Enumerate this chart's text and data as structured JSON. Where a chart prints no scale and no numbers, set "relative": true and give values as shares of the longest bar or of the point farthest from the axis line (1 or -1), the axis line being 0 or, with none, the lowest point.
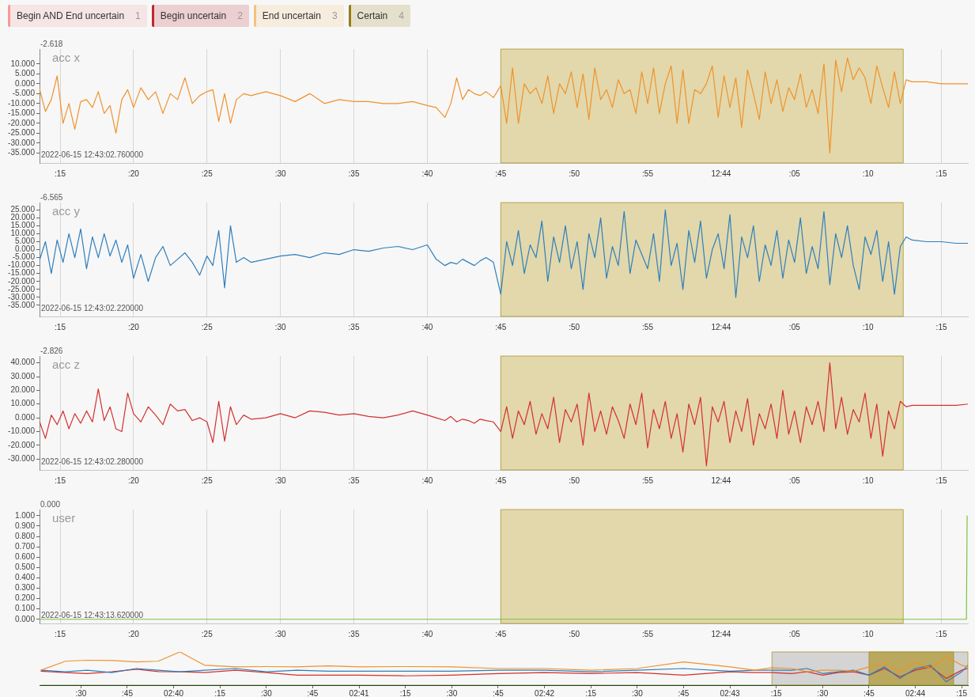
{
  "chart_data": [
    {
      "type": "other",
      "annotations": [
        "Begin AND End uncertain",
        "1",
        "Begin uncertain",
        "2",
        "End uncertain",
        "3",
        "Certain",
        "4"
      ],
      "colors": [
        "#f49a9a",
        "#c0272d",
        "#f7c27c",
        "#9a7d12"
      ]
    },
    {
      "type": "line",
      "title": "acc x",
      "annotations": [
        "-2.618",
        "2022-06-15 12:43:02.760000"
      ],
      "x": [
        "2022-06-15T12:43:13.6",
        "2022-06-15T12:43:14.0",
        "2022-06-15T12:43:14.4",
        "2022-06-15T12:43:14.8",
        "2022-06-15T12:43:15.2",
        "2022-06-15T12:43:15.6",
        "2022-06-15T12:43:16.0",
        "2022-06-15T12:43:16.4",
        "2022-06-15T12:43:16.8",
        "2022-06-15T12:43:17.2",
        "2022-06-15T12:43:17.6",
        "2022-06-15T12:43:18.0",
        "2022-06-15T12:43:18.4",
        "2022-06-15T12:43:18.8",
        "2022-06-15T12:43:19.2",
        "2022-06-15T12:43:19.6",
        "2022-06-15T12:43:20.0",
        "2022-06-15T12:43:20.5",
        "2022-06-15T12:43:21.0",
        "2022-06-15T12:43:21.5",
        "2022-06-15T12:43:22.0",
        "2022-06-15T12:43:22.5",
        "2022-06-15T12:43:23.0",
        "2022-06-15T12:43:23.5",
        "2022-06-15T12:43:24.0",
        "2022-06-15T12:43:24.5",
        "2022-06-15T12:43:25.0",
        "2022-06-15T12:43:25.4",
        "2022-06-15T12:43:25.8",
        "2022-06-15T12:43:26.2",
        "2022-06-15T12:43:26.6",
        "2022-06-15T12:43:27.0",
        "2022-06-15T12:43:27.5",
        "2022-06-15T12:43:28.0",
        "2022-06-15T12:43:29.0",
        "2022-06-15T12:43:30.0",
        "2022-06-15T12:43:31.0",
        "2022-06-15T12:43:32.0",
        "2022-06-15T12:43:33.0",
        "2022-06-15T12:43:34.0",
        "2022-06-15T12:43:35.0",
        "2022-06-15T12:43:36.0",
        "2022-06-15T12:43:37.0",
        "2022-06-15T12:43:38.0",
        "2022-06-15T12:43:39.0",
        "2022-06-15T12:43:40.0",
        "2022-06-15T12:43:40.6",
        "2022-06-15T12:43:41.2",
        "2022-06-15T12:43:41.6",
        "2022-06-15T12:43:42.0",
        "2022-06-15T12:43:42.4",
        "2022-06-15T12:43:42.8",
        "2022-06-15T12:43:43.2",
        "2022-06-15T12:43:43.6",
        "2022-06-15T12:43:44.0",
        "2022-06-15T12:43:44.5",
        "2022-06-15T12:43:45.0",
        "2022-06-15T12:43:45.4",
        "2022-06-15T12:43:45.8",
        "2022-06-15T12:43:46.2",
        "2022-06-15T12:43:46.6",
        "2022-06-15T12:43:47.0",
        "2022-06-15T12:43:47.4",
        "2022-06-15T12:43:47.8",
        "2022-06-15T12:43:48.2",
        "2022-06-15T12:43:48.6",
        "2022-06-15T12:43:49.0",
        "2022-06-15T12:43:49.4",
        "2022-06-15T12:43:49.8",
        "2022-06-15T12:43:50.2",
        "2022-06-15T12:43:50.6",
        "2022-06-15T12:43:51.0",
        "2022-06-15T12:43:51.4",
        "2022-06-15T12:43:51.8",
        "2022-06-15T12:43:52.2",
        "2022-06-15T12:43:52.6",
        "2022-06-15T12:43:53.0",
        "2022-06-15T12:43:53.4",
        "2022-06-15T12:43:53.8",
        "2022-06-15T12:43:54.2",
        "2022-06-15T12:43:54.6",
        "2022-06-15T12:43:55.0",
        "2022-06-15T12:43:55.4",
        "2022-06-15T12:43:55.8",
        "2022-06-15T12:43:56.2",
        "2022-06-15T12:43:56.6",
        "2022-06-15T12:43:57.0",
        "2022-06-15T12:43:57.4",
        "2022-06-15T12:43:57.8",
        "2022-06-15T12:43:58.2",
        "2022-06-15T12:43:58.6",
        "2022-06-15T12:43:59.0",
        "2022-06-15T12:43:59.4",
        "2022-06-15T12:43:59.8",
        "2022-06-15T12:44:00.2",
        "2022-06-15T12:44:00.6",
        "2022-06-15T12:44:01.0",
        "2022-06-15T12:44:01.4",
        "2022-06-15T12:44:01.8",
        "2022-06-15T12:44:02.2",
        "2022-06-15T12:44:02.6",
        "2022-06-15T12:44:03.0",
        "2022-06-15T12:44:03.4",
        "2022-06-15T12:44:03.8",
        "2022-06-15T12:44:04.2",
        "2022-06-15T12:44:04.6",
        "2022-06-15T12:44:05.0",
        "2022-06-15T12:44:05.4",
        "2022-06-15T12:44:05.8",
        "2022-06-15T12:44:06.2",
        "2022-06-15T12:44:06.6",
        "2022-06-15T12:44:07.0",
        "2022-06-15T12:44:07.4",
        "2022-06-15T12:44:07.8",
        "2022-06-15T12:44:08.2",
        "2022-06-15T12:44:08.6",
        "2022-06-15T12:44:09.0",
        "2022-06-15T12:44:09.4",
        "2022-06-15T12:44:09.8",
        "2022-06-15T12:44:10.2",
        "2022-06-15T12:44:10.6",
        "2022-06-15T12:44:11.0",
        "2022-06-15T12:44:11.4",
        "2022-06-15T12:44:11.8",
        "2022-06-15T12:44:12.2",
        "2022-06-15T12:44:12.6",
        "2022-06-15T12:44:13.0",
        "2022-06-15T12:44:14.0",
        "2022-06-15T12:44:15.0",
        "2022-06-15T12:44:16.0",
        "2022-06-15T12:44:16.8"
      ],
      "series": [
        {
          "color": "#f0922b",
          "values": [
            -2.6,
            -14,
            -8,
            4,
            -20,
            -10,
            -23,
            -9,
            -8,
            -12,
            -4,
            -15,
            -11,
            -25,
            -8,
            -3,
            -12,
            -2,
            -8,
            -4,
            -15,
            -5,
            -8,
            3,
            -10,
            -6,
            -4,
            -3,
            -19,
            -5,
            -20,
            -8,
            -5,
            -6,
            -4,
            -6,
            -9,
            -5,
            -10,
            -8,
            -9,
            -9,
            -10,
            -10,
            -9,
            -11,
            -12,
            -17,
            -10,
            3,
            -8,
            -3,
            -5,
            -6,
            -4,
            -7,
            -1,
            -20,
            8,
            -20,
            0,
            -5,
            -2,
            -10,
            4,
            -15,
            0,
            -5,
            6,
            -12,
            5,
            -18,
            8,
            -8,
            -3,
            -12,
            2,
            -5,
            -3,
            -15,
            6,
            -10,
            8,
            -15,
            0,
            9,
            -20,
            7,
            -20,
            -3,
            -5,
            0,
            9,
            -17,
            4,
            -12,
            3,
            -22,
            7,
            -5,
            -18,
            6,
            -10,
            2,
            -14,
            -2,
            -8,
            5,
            -12,
            -3,
            -15,
            10,
            -35,
            12,
            -4,
            13,
            2,
            8,
            3,
            -10,
            9,
            -2,
            -12,
            6,
            -10,
            2,
            1,
            1,
            0,
            0,
            0
          ]
        }
      ],
      "xlim": [
        "2022-06-15T12:43:13.6",
        "2022-06-15T12:44:16.8"
      ],
      "xticks": [
        {
          "value": "2022-06-15T12:43:15",
          "label": ":15"
        },
        {
          "value": "2022-06-15T12:43:20",
          "label": ":20"
        },
        {
          "value": "2022-06-15T12:43:25",
          "label": ":25"
        },
        {
          "value": "2022-06-15T12:43:30",
          "label": ":30"
        },
        {
          "value": "2022-06-15T12:43:35",
          "label": ":35"
        },
        {
          "value": "2022-06-15T12:43:40",
          "label": ":40"
        },
        {
          "value": "2022-06-15T12:43:45",
          "label": ":45"
        },
        {
          "value": "2022-06-15T12:43:50",
          "label": ":50"
        },
        {
          "value": "2022-06-15T12:43:55",
          "label": ":55"
        },
        {
          "value": "2022-06-15T12:44:00",
          "label": "12:44"
        },
        {
          "value": "2022-06-15T12:44:05",
          "label": ":05"
        },
        {
          "value": "2022-06-15T12:44:10",
          "label": ":10"
        },
        {
          "value": "2022-06-15T12:44:15",
          "label": ":15"
        }
      ],
      "ylim": [
        -40,
        17.5
      ],
      "yticks": [
        {
          "value": -35,
          "label": "-35.000"
        },
        {
          "value": -30,
          "label": "-30.000"
        },
        {
          "value": -25,
          "label": "-25.000"
        },
        {
          "value": -20,
          "label": "-20.000"
        },
        {
          "value": -15,
          "label": "-15.000"
        },
        {
          "value": -10,
          "label": "-10.000"
        },
        {
          "value": -5,
          "label": "-5.000"
        },
        {
          "value": 0,
          "label": "0.000"
        },
        {
          "value": 5,
          "label": "5.000"
        },
        {
          "value": 10,
          "label": "10.000"
        }
      ],
      "bands": [
        {
          "axis": "x",
          "from": "2022-06-15T12:43:45",
          "to": "2022-06-15T12:44:12.4",
          "color": "#e2d8ab"
        }
      ],
      "grid": "x"
    },
    {
      "type": "line",
      "title": "acc y",
      "annotations": [
        "-6.565",
        "2022-06-15 12:43:02.220000"
      ],
      "x": [
        "2022-06-15T12:43:13.6",
        "2022-06-15T12:43:14.0",
        "2022-06-15T12:43:14.4",
        "2022-06-15T12:43:14.8",
        "2022-06-15T12:43:15.2",
        "2022-06-15T12:43:15.6",
        "2022-06-15T12:43:16.0",
        "2022-06-15T12:43:16.4",
        "2022-06-15T12:43:16.8",
        "2022-06-15T12:43:17.2",
        "2022-06-15T12:43:17.6",
        "2022-06-15T12:43:18.0",
        "2022-06-15T12:43:18.4",
        "2022-06-15T12:43:18.8",
        "2022-06-15T12:43:19.2",
        "2022-06-15T12:43:19.6",
        "2022-06-15T12:43:20.0",
        "2022-06-15T12:43:20.5",
        "2022-06-15T12:43:21.0",
        "2022-06-15T12:43:21.5",
        "2022-06-15T12:43:22.0",
        "2022-06-15T12:43:22.5",
        "2022-06-15T12:43:23.0",
        "2022-06-15T12:43:23.5",
        "2022-06-15T12:43:24.0",
        "2022-06-15T12:43:24.5",
        "2022-06-15T12:43:25.0",
        "2022-06-15T12:43:25.4",
        "2022-06-15T12:43:25.8",
        "2022-06-15T12:43:26.2",
        "2022-06-15T12:43:26.6",
        "2022-06-15T12:43:27.0",
        "2022-06-15T12:43:27.5",
        "2022-06-15T12:43:28.0",
        "2022-06-15T12:43:29.0",
        "2022-06-15T12:43:30.0",
        "2022-06-15T12:43:31.0",
        "2022-06-15T12:43:32.0",
        "2022-06-15T12:43:33.0",
        "2022-06-15T12:43:34.0",
        "2022-06-15T12:43:35.0",
        "2022-06-15T12:43:36.0",
        "2022-06-15T12:43:37.0",
        "2022-06-15T12:43:38.0",
        "2022-06-15T12:43:39.0",
        "2022-06-15T12:43:40.0",
        "2022-06-15T12:43:40.6",
        "2022-06-15T12:43:41.2",
        "2022-06-15T12:43:41.6",
        "2022-06-15T12:43:42.0",
        "2022-06-15T12:43:42.4",
        "2022-06-15T12:43:42.8",
        "2022-06-15T12:43:43.2",
        "2022-06-15T12:43:43.6",
        "2022-06-15T12:43:44.0",
        "2022-06-15T12:43:44.5",
        "2022-06-15T12:43:45.0",
        "2022-06-15T12:43:45.4",
        "2022-06-15T12:43:45.8",
        "2022-06-15T12:43:46.2",
        "2022-06-15T12:43:46.6",
        "2022-06-15T12:43:47.0",
        "2022-06-15T12:43:47.4",
        "2022-06-15T12:43:47.8",
        "2022-06-15T12:43:48.2",
        "2022-06-15T12:43:48.6",
        "2022-06-15T12:43:49.0",
        "2022-06-15T12:43:49.4",
        "2022-06-15T12:43:49.8",
        "2022-06-15T12:43:50.2",
        "2022-06-15T12:43:50.6",
        "2022-06-15T12:43:51.0",
        "2022-06-15T12:43:51.4",
        "2022-06-15T12:43:51.8",
        "2022-06-15T12:43:52.2",
        "2022-06-15T12:43:52.6",
        "2022-06-15T12:43:53.0",
        "2022-06-15T12:43:53.4",
        "2022-06-15T12:43:53.8",
        "2022-06-15T12:43:54.2",
        "2022-06-15T12:43:54.6",
        "2022-06-15T12:43:55.0",
        "2022-06-15T12:43:55.4",
        "2022-06-15T12:43:55.8",
        "2022-06-15T12:43:56.2",
        "2022-06-15T12:43:56.6",
        "2022-06-15T12:43:57.0",
        "2022-06-15T12:43:57.4",
        "2022-06-15T12:43:57.8",
        "2022-06-15T12:43:58.2",
        "2022-06-15T12:43:58.6",
        "2022-06-15T12:43:59.0",
        "2022-06-15T12:43:59.4",
        "2022-06-15T12:43:59.8",
        "2022-06-15T12:44:00.2",
        "2022-06-15T12:44:00.6",
        "2022-06-15T12:44:01.0",
        "2022-06-15T12:44:01.4",
        "2022-06-15T12:44:01.8",
        "2022-06-15T12:44:02.2",
        "2022-06-15T12:44:02.6",
        "2022-06-15T12:44:03.0",
        "2022-06-15T12:44:03.4",
        "2022-06-15T12:44:03.8",
        "2022-06-15T12:44:04.2",
        "2022-06-15T12:44:04.6",
        "2022-06-15T12:44:05.0",
        "2022-06-15T12:44:05.4",
        "2022-06-15T12:44:05.8",
        "2022-06-15T12:44:06.2",
        "2022-06-15T12:44:06.6",
        "2022-06-15T12:44:07.0",
        "2022-06-15T12:44:07.4",
        "2022-06-15T12:44:07.8",
        "2022-06-15T12:44:08.2",
        "2022-06-15T12:44:08.6",
        "2022-06-15T12:44:09.0",
        "2022-06-15T12:44:09.4",
        "2022-06-15T12:44:09.8",
        "2022-06-15T12:44:10.2",
        "2022-06-15T12:44:10.6",
        "2022-06-15T12:44:11.0",
        "2022-06-15T12:44:11.4",
        "2022-06-15T12:44:11.8",
        "2022-06-15T12:44:12.2",
        "2022-06-15T12:44:12.6",
        "2022-06-15T12:44:13.0",
        "2022-06-15T12:44:14.0",
        "2022-06-15T12:44:15.0",
        "2022-06-15T12:44:16.0",
        "2022-06-15T12:44:16.8"
      ],
      "series": [
        {
          "color": "#2e7fbd",
          "values": [
            -6.6,
            5,
            -15,
            6,
            -8,
            10,
            -5,
            13,
            -12,
            8,
            -5,
            10,
            -4,
            6,
            -8,
            3,
            -18,
            -3,
            -20,
            -5,
            2,
            -10,
            -6,
            -2,
            -8,
            -16,
            -4,
            -10,
            12,
            -24,
            15,
            -8,
            -5,
            -8,
            -6,
            -4,
            -3,
            -5,
            -2,
            -3,
            0,
            -1,
            1,
            2,
            0,
            3,
            -6,
            -10,
            -8,
            -9,
            -6,
            -8,
            -10,
            -7,
            -5,
            -8,
            -28,
            5,
            -10,
            12,
            -15,
            3,
            -5,
            18,
            -20,
            8,
            -8,
            15,
            -12,
            5,
            -25,
            10,
            -5,
            20,
            -18,
            2,
            -10,
            24,
            -15,
            6,
            -3,
            -12,
            10,
            -20,
            25,
            -10,
            4,
            -25,
            12,
            -8,
            18,
            -18,
            0,
            10,
            -12,
            22,
            -30,
            8,
            -5,
            15,
            -20,
            3,
            -10,
            12,
            -18,
            6,
            -8,
            20,
            -15,
            2,
            -12,
            24,
            -22,
            10,
            -5,
            15,
            -10,
            -25,
            8,
            -3,
            12,
            -20,
            5,
            -28,
            2,
            8,
            6,
            5,
            5,
            4,
            4
          ]
        }
      ],
      "xlim": [
        "2022-06-15T12:43:13.6",
        "2022-06-15T12:44:16.8"
      ],
      "xticks": [
        {
          "value": "2022-06-15T12:43:15",
          "label": ":15"
        },
        {
          "value": "2022-06-15T12:43:20",
          "label": ":20"
        },
        {
          "value": "2022-06-15T12:43:25",
          "label": ":25"
        },
        {
          "value": "2022-06-15T12:43:30",
          "label": ":30"
        },
        {
          "value": "2022-06-15T12:43:35",
          "label": ":35"
        },
        {
          "value": "2022-06-15T12:43:40",
          "label": ":40"
        },
        {
          "value": "2022-06-15T12:43:45",
          "label": ":45"
        },
        {
          "value": "2022-06-15T12:43:50",
          "label": ":50"
        },
        {
          "value": "2022-06-15T12:43:55",
          "label": ":55"
        },
        {
          "value": "2022-06-15T12:44:00",
          "label": "12:44"
        },
        {
          "value": "2022-06-15T12:44:05",
          "label": ":05"
        },
        {
          "value": "2022-06-15T12:44:10",
          "label": ":10"
        },
        {
          "value": "2022-06-15T12:44:15",
          "label": ":15"
        }
      ],
      "ylim": [
        -42,
        29.6
      ],
      "yticks": [
        {
          "value": -35,
          "label": "-35.000"
        },
        {
          "value": -30,
          "label": "-30.000"
        },
        {
          "value": -25,
          "label": "-25.000"
        },
        {
          "value": -20,
          "label": "-20.000"
        },
        {
          "value": -15,
          "label": "-15.000"
        },
        {
          "value": -10,
          "label": "-10.000"
        },
        {
          "value": -5,
          "label": "-5.000"
        },
        {
          "value": 0,
          "label": "0.000"
        },
        {
          "value": 5,
          "label": "5.000"
        },
        {
          "value": 10,
          "label": "10.000"
        },
        {
          "value": 15,
          "label": "15.000"
        },
        {
          "value": 20,
          "label": "20.000"
        },
        {
          "value": 25,
          "label": "25.000"
        }
      ],
      "bands": [
        {
          "axis": "x",
          "from": "2022-06-15T12:43:45",
          "to": "2022-06-15T12:44:12.4",
          "color": "#e2d8ab"
        }
      ],
      "grid": "x"
    },
    {
      "type": "line",
      "title": "acc z",
      "annotations": [
        "-2.826",
        "2022-06-15 12:43:02.280000"
      ],
      "x": [
        "2022-06-15T12:43:13.6",
        "2022-06-15T12:43:14.0",
        "2022-06-15T12:43:14.4",
        "2022-06-15T12:43:14.8",
        "2022-06-15T12:43:15.2",
        "2022-06-15T12:43:15.6",
        "2022-06-15T12:43:16.0",
        "2022-06-15T12:43:16.4",
        "2022-06-15T12:43:16.8",
        "2022-06-15T12:43:17.2",
        "2022-06-15T12:43:17.6",
        "2022-06-15T12:43:18.0",
        "2022-06-15T12:43:18.4",
        "2022-06-15T12:43:18.8",
        "2022-06-15T12:43:19.2",
        "2022-06-15T12:43:19.6",
        "2022-06-15T12:43:20.0",
        "2022-06-15T12:43:20.5",
        "2022-06-15T12:43:21.0",
        "2022-06-15T12:43:21.5",
        "2022-06-15T12:43:22.0",
        "2022-06-15T12:43:22.5",
        "2022-06-15T12:43:23.0",
        "2022-06-15T12:43:23.5",
        "2022-06-15T12:43:24.0",
        "2022-06-15T12:43:24.5",
        "2022-06-15T12:43:25.0",
        "2022-06-15T12:43:25.4",
        "2022-06-15T12:43:25.8",
        "2022-06-15T12:43:26.2",
        "2022-06-15T12:43:26.6",
        "2022-06-15T12:43:27.0",
        "2022-06-15T12:43:27.5",
        "2022-06-15T12:43:28.0",
        "2022-06-15T12:43:29.0",
        "2022-06-15T12:43:30.0",
        "2022-06-15T12:43:31.0",
        "2022-06-15T12:43:32.0",
        "2022-06-15T12:43:33.0",
        "2022-06-15T12:43:34.0",
        "2022-06-15T12:43:35.0",
        "2022-06-15T12:43:36.0",
        "2022-06-15T12:43:37.0",
        "2022-06-15T12:43:38.0",
        "2022-06-15T12:43:39.0",
        "2022-06-15T12:43:40.0",
        "2022-06-15T12:43:40.6",
        "2022-06-15T12:43:41.2",
        "2022-06-15T12:43:41.6",
        "2022-06-15T12:43:42.0",
        "2022-06-15T12:43:42.4",
        "2022-06-15T12:43:42.8",
        "2022-06-15T12:43:43.2",
        "2022-06-15T12:43:43.6",
        "2022-06-15T12:43:44.0",
        "2022-06-15T12:43:44.5",
        "2022-06-15T12:43:45.0",
        "2022-06-15T12:43:45.4",
        "2022-06-15T12:43:45.8",
        "2022-06-15T12:43:46.2",
        "2022-06-15T12:43:46.6",
        "2022-06-15T12:43:47.0",
        "2022-06-15T12:43:47.4",
        "2022-06-15T12:43:47.8",
        "2022-06-15T12:43:48.2",
        "2022-06-15T12:43:48.6",
        "2022-06-15T12:43:49.0",
        "2022-06-15T12:43:49.4",
        "2022-06-15T12:43:49.8",
        "2022-06-15T12:43:50.2",
        "2022-06-15T12:43:50.6",
        "2022-06-15T12:43:51.0",
        "2022-06-15T12:43:51.4",
        "2022-06-15T12:43:51.8",
        "2022-06-15T12:43:52.2",
        "2022-06-15T12:43:52.6",
        "2022-06-15T12:43:53.0",
        "2022-06-15T12:43:53.4",
        "2022-06-15T12:43:53.8",
        "2022-06-15T12:43:54.2",
        "2022-06-15T12:43:54.6",
        "2022-06-15T12:43:55.0",
        "2022-06-15T12:43:55.4",
        "2022-06-15T12:43:55.8",
        "2022-06-15T12:43:56.2",
        "2022-06-15T12:43:56.6",
        "2022-06-15T12:43:57.0",
        "2022-06-15T12:43:57.4",
        "2022-06-15T12:43:57.8",
        "2022-06-15T12:43:58.2",
        "2022-06-15T12:43:58.6",
        "2022-06-15T12:43:59.0",
        "2022-06-15T12:43:59.4",
        "2022-06-15T12:43:59.8",
        "2022-06-15T12:44:00.2",
        "2022-06-15T12:44:00.6",
        "2022-06-15T12:44:01.0",
        "2022-06-15T12:44:01.4",
        "2022-06-15T12:44:01.8",
        "2022-06-15T12:44:02.2",
        "2022-06-15T12:44:02.6",
        "2022-06-15T12:44:03.0",
        "2022-06-15T12:44:03.4",
        "2022-06-15T12:44:03.8",
        "2022-06-15T12:44:04.2",
        "2022-06-15T12:44:04.6",
        "2022-06-15T12:44:05.0",
        "2022-06-15T12:44:05.4",
        "2022-06-15T12:44:05.8",
        "2022-06-15T12:44:06.2",
        "2022-06-15T12:44:06.6",
        "2022-06-15T12:44:07.0",
        "2022-06-15T12:44:07.4",
        "2022-06-15T12:44:07.8",
        "2022-06-15T12:44:08.2",
        "2022-06-15T12:44:08.6",
        "2022-06-15T12:44:09.0",
        "2022-06-15T12:44:09.4",
        "2022-06-15T12:44:09.8",
        "2022-06-15T12:44:10.2",
        "2022-06-15T12:44:10.6",
        "2022-06-15T12:44:11.0",
        "2022-06-15T12:44:11.4",
        "2022-06-15T12:44:11.8",
        "2022-06-15T12:44:12.2",
        "2022-06-15T12:44:12.6",
        "2022-06-15T12:44:13.0",
        "2022-06-15T12:44:14.0",
        "2022-06-15T12:44:15.0",
        "2022-06-15T12:44:16.0",
        "2022-06-15T12:44:16.8"
      ],
      "series": [
        {
          "color": "#d62f2f",
          "values": [
            -2.8,
            -15,
            2,
            -5,
            5,
            -8,
            3,
            -4,
            5,
            -3,
            21,
            -2,
            8,
            -8,
            -10,
            18,
            3,
            -3,
            8,
            2,
            -5,
            10,
            5,
            6,
            -2,
            0,
            -3,
            -18,
            12,
            -17,
            8,
            -5,
            2,
            -1,
            0,
            3,
            0,
            5,
            4,
            2,
            3,
            1,
            0,
            2,
            5,
            2,
            0,
            -2,
            1,
            -3,
            -1,
            -2,
            -4,
            -1,
            -2,
            -3,
            -10,
            8,
            -15,
            5,
            -5,
            12,
            -12,
            3,
            -8,
            15,
            -18,
            6,
            -3,
            10,
            -20,
            18,
            -10,
            5,
            -12,
            8,
            -2,
            -15,
            10,
            -5,
            18,
            -22,
            6,
            -8,
            12,
            -15,
            3,
            -25,
            10,
            -5,
            15,
            -35,
            8,
            -3,
            12,
            -18,
            5,
            -10,
            14,
            -20,
            3,
            -8,
            10,
            -15,
            20,
            -12,
            5,
            -18,
            8,
            -5,
            12,
            -10,
            40,
            -8,
            15,
            -12,
            6,
            -3,
            18,
            -15,
            10,
            -28,
            5,
            -8,
            12,
            8,
            9,
            9,
            9,
            9,
            10
          ]
        }
      ],
      "xlim": [
        "2022-06-15T12:43:13.6",
        "2022-06-15T12:44:16.8"
      ],
      "xticks": [
        {
          "value": "2022-06-15T12:43:15",
          "label": ":15"
        },
        {
          "value": "2022-06-15T12:43:20",
          "label": ":20"
        },
        {
          "value": "2022-06-15T12:43:25",
          "label": ":25"
        },
        {
          "value": "2022-06-15T12:43:30",
          "label": ":30"
        },
        {
          "value": "2022-06-15T12:43:35",
          "label": ":35"
        },
        {
          "value": "2022-06-15T12:43:40",
          "label": ":40"
        },
        {
          "value": "2022-06-15T12:43:45",
          "label": ":45"
        },
        {
          "value": "2022-06-15T12:43:50",
          "label": ":50"
        },
        {
          "value": "2022-06-15T12:43:55",
          "label": ":55"
        },
        {
          "value": "2022-06-15T12:44:00",
          "label": "12:44"
        },
        {
          "value": "2022-06-15T12:44:05",
          "label": ":05"
        },
        {
          "value": "2022-06-15T12:44:10",
          "label": ":10"
        },
        {
          "value": "2022-06-15T12:44:15",
          "label": ":15"
        }
      ],
      "ylim": [
        -38,
        45
      ],
      "yticks": [
        {
          "value": -30,
          "label": "-30.000"
        },
        {
          "value": -20,
          "label": "-20.000"
        },
        {
          "value": -10,
          "label": "-10.000"
        },
        {
          "value": 0,
          "label": "0.000"
        },
        {
          "value": 10,
          "label": "10.000"
        },
        {
          "value": 20,
          "label": "20.000"
        },
        {
          "value": 30,
          "label": "30.000"
        },
        {
          "value": 40,
          "label": "40.000"
        }
      ],
      "bands": [
        {
          "axis": "x",
          "from": "2022-06-15T12:43:45",
          "to": "2022-06-15T12:44:12.4",
          "color": "#e2d8ab"
        }
      ],
      "grid": "x"
    },
    {
      "type": "line",
      "title": "user",
      "annotations": [
        "0.000",
        "2022-06-15 12:43:13.620000"
      ],
      "x": [
        "2022-06-15T12:43:13.6",
        "2022-06-15T12:44:16.7",
        "2022-06-15T12:44:16.75"
      ],
      "series": [
        {
          "color": "#7cc043",
          "values": [
            0,
            0,
            1
          ]
        }
      ],
      "xlim": [
        "2022-06-15T12:43:13.6",
        "2022-06-15T12:44:16.8"
      ],
      "xticks": [
        {
          "value": "2022-06-15T12:43:15",
          "label": ":15"
        },
        {
          "value": "2022-06-15T12:43:20",
          "label": ":20"
        },
        {
          "value": "2022-06-15T12:43:25",
          "label": ":25"
        },
        {
          "value": "2022-06-15T12:43:30",
          "label": ":30"
        },
        {
          "value": "2022-06-15T12:43:35",
          "label": ":35"
        },
        {
          "value": "2022-06-15T12:43:40",
          "label": ":40"
        },
        {
          "value": "2022-06-15T12:43:45",
          "label": ":45"
        },
        {
          "value": "2022-06-15T12:43:50",
          "label": ":50"
        },
        {
          "value": "2022-06-15T12:43:55",
          "label": ":55"
        },
        {
          "value": "2022-06-15T12:44:00",
          "label": "12:44"
        },
        {
          "value": "2022-06-15T12:44:05",
          "label": ":05"
        },
        {
          "value": "2022-06-15T12:44:10",
          "label": ":10"
        },
        {
          "value": "2022-06-15T12:44:15",
          "label": ":15"
        }
      ],
      "ylim": [
        -0.04,
        1.06
      ],
      "yticks": [
        {
          "value": 0,
          "label": "0.000"
        },
        {
          "value": 0.1,
          "label": "0.100"
        },
        {
          "value": 0.2,
          "label": "0.200"
        },
        {
          "value": 0.3,
          "label": "0.300"
        },
        {
          "value": 0.4,
          "label": "0.400"
        },
        {
          "value": 0.5,
          "label": "0.500"
        },
        {
          "value": 0.6,
          "label": "0.600"
        },
        {
          "value": 0.7,
          "label": "0.700"
        },
        {
          "value": 0.8,
          "label": "0.800"
        },
        {
          "value": 0.9,
          "label": "0.900"
        },
        {
          "value": 1,
          "label": "1.000"
        }
      ],
      "bands": [
        {
          "axis": "x",
          "from": "2022-06-15T12:43:45",
          "to": "2022-06-15T12:44:12.4",
          "color": "#e2d8ab"
        }
      ],
      "grid": "x"
    },
    {
      "type": "line",
      "relative": true,
      "x": [
        "2022-06-15T02:39:17",
        "2022-06-15T02:39:25",
        "2022-06-15T02:39:32",
        "2022-06-15T02:39:40",
        "2022-06-15T02:39:48",
        "2022-06-15T02:39:55",
        "2022-06-15T02:40:02",
        "2022-06-15T02:40:10",
        "2022-06-15T02:40:20",
        "2022-06-15T02:40:30",
        "2022-06-15T02:40:40",
        "2022-06-15T02:40:50",
        "2022-06-15T02:41:00",
        "2022-06-15T02:41:15",
        "2022-06-15T02:41:30",
        "2022-06-15T02:41:45",
        "2022-06-15T02:42:00",
        "2022-06-15T02:42:15",
        "2022-06-15T02:42:30",
        "2022-06-15T02:42:45",
        "2022-06-15T02:43:00",
        "2022-06-15T02:43:08",
        "2022-06-15T02:43:13.6",
        "2022-06-15T02:43:20",
        "2022-06-15T02:43:25",
        "2022-06-15T02:43:30",
        "2022-06-15T02:43:35",
        "2022-06-15T02:43:40",
        "2022-06-15T02:43:45",
        "2022-06-15T02:43:50",
        "2022-06-15T02:43:55",
        "2022-06-15T02:44:00",
        "2022-06-15T02:44:05",
        "2022-06-15T02:44:10",
        "2022-06-15T02:44:15",
        "2022-06-15T02:44:17"
      ],
      "series": [
        {
          "color": "#f0922b",
          "values": [
            0.45,
            0.72,
            0.75,
            0.74,
            0.7,
            0.72,
            1,
            0.6,
            0.55,
            0.56,
            0.55,
            0.58,
            0.55,
            0.56,
            0.55,
            0.5,
            0.5,
            0.45,
            0.5,
            0.7,
            0.55,
            0.45,
            0.52,
            0.5,
            0.4,
            0.45,
            0.45,
            0.42,
            0.55,
            0.65,
            0.4,
            0.7,
            0.5,
            0.85,
            0.6,
            0.55
          ]
        },
        {
          "color": "#2e7fbd",
          "values": [
            0.45,
            0.4,
            0.45,
            0.38,
            0.5,
            0.45,
            0.4,
            0.45,
            0.5,
            0.4,
            0.45,
            0.42,
            0.42,
            0.42,
            0.42,
            0.45,
            0.45,
            0.4,
            0.45,
            0.5,
            0.42,
            0.45,
            0.45,
            0.45,
            0.5,
            0.35,
            0.4,
            0.45,
            0.3,
            0.55,
            0.2,
            0.5,
            0.6,
            0.1,
            0.4,
            0.6
          ]
        },
        {
          "color": "#d62f2f",
          "values": [
            0.42,
            0.38,
            0.35,
            0.4,
            0.48,
            0.41,
            0.4,
            0.38,
            0.45,
            0.38,
            0.3,
            0.3,
            0.3,
            0.28,
            0.3,
            0.35,
            0.38,
            0.35,
            0.38,
            0.3,
            0.4,
            0.38,
            0.38,
            0.35,
            0.4,
            0.3,
            0.38,
            0.4,
            0.3,
            0.5,
            0.25,
            0.45,
            0.55,
            0.2,
            0.45,
            0.5
          ]
        },
        {
          "color": "#7cc043",
          "values": [
            0,
            0,
            0,
            0,
            0,
            0,
            0,
            0,
            0,
            0,
            0,
            0,
            0,
            0,
            0,
            0,
            0,
            0,
            0,
            0,
            0,
            0,
            0,
            0,
            0,
            0,
            0,
            0,
            0,
            0,
            0,
            0,
            0,
            0,
            0,
            0
          ]
        }
      ],
      "xlim": [
        "2022-06-15T02:39:16.6",
        "2022-06-15T02:44:17"
      ],
      "xticks": [
        {
          "value": "2022-06-15T02:39:30",
          "label": ":30"
        },
        {
          "value": "2022-06-15T02:39:45",
          "label": ":45"
        },
        {
          "value": "2022-06-15T02:40:00",
          "label": "02:40"
        },
        {
          "value": "2022-06-15T02:40:15",
          "label": ":15"
        },
        {
          "value": "2022-06-15T02:40:30",
          "label": ":30"
        },
        {
          "value": "2022-06-15T02:40:45",
          "label": ":45"
        },
        {
          "value": "2022-06-15T02:41:00",
          "label": "02:41"
        },
        {
          "value": "2022-06-15T02:41:15",
          "label": ":15"
        },
        {
          "value": "2022-06-15T02:41:30",
          "label": ":30"
        },
        {
          "value": "2022-06-15T02:41:45",
          "label": ":45"
        },
        {
          "value": "2022-06-15T02:42:00",
          "label": "02:42"
        },
        {
          "value": "2022-06-15T02:42:15",
          "label": ":15"
        },
        {
          "value": "2022-06-15T02:42:30",
          "label": ":30"
        },
        {
          "value": "2022-06-15T02:42:45",
          "label": ":45"
        },
        {
          "value": "2022-06-15T02:43:00",
          "label": "02:43"
        },
        {
          "value": "2022-06-15T02:43:15",
          "label": ":15"
        },
        {
          "value": "2022-06-15T02:43:30",
          "label": ":30"
        },
        {
          "value": "2022-06-15T02:43:45",
          "label": ":45"
        },
        {
          "value": "2022-06-15T02:44:00",
          "label": "02:44"
        },
        {
          "value": "2022-06-15T02:44:15",
          "label": ":15"
        }
      ],
      "bands": [
        {
          "axis": "x",
          "from": "2022-06-15T02:43:13.6",
          "to": "2022-06-15T02:44:17",
          "color": "#d4d4d4"
        },
        {
          "axis": "x",
          "from": "2022-06-15T02:43:45",
          "to": "2022-06-15T02:44:12.4",
          "color": "#b9a85e"
        }
      ]
    }
  ]
}
